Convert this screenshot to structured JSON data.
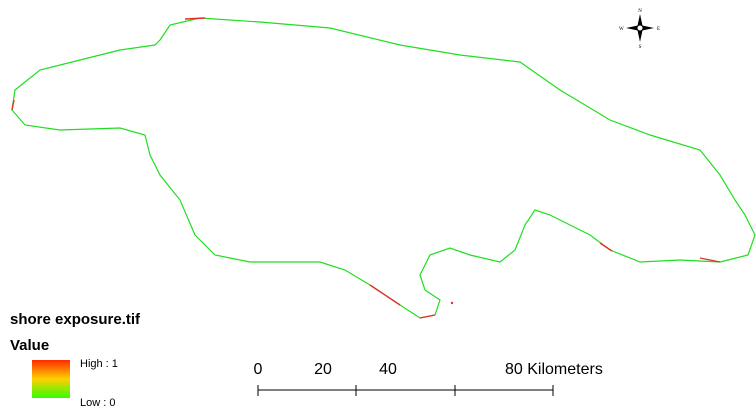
{
  "legend": {
    "title": "shore exposure.tif",
    "field": "Value",
    "high": "High : 1",
    "low": "Low : 0"
  },
  "scale_bar": {
    "labels": [
      "0",
      "20",
      "40",
      "80 Kilometers"
    ]
  },
  "compass": {
    "n": "N",
    "s": "S",
    "e": "E",
    "w": "W"
  }
}
